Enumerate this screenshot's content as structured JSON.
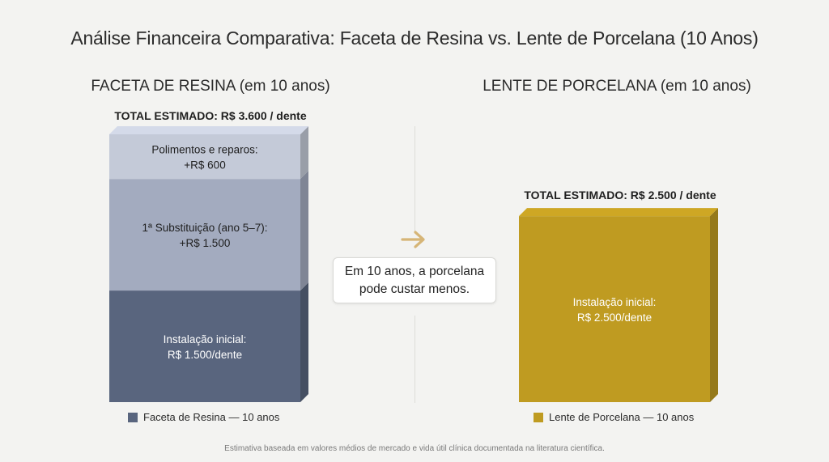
{
  "title": "Análise Financeira Comparativa: Faceta de Resina vs. Lente de Porcelana (10 Anos)",
  "colors": {
    "resin_base": "#59657e",
    "resin_mid": "#a3abbf",
    "resin_top": "#c4cad8",
    "porcelain": "#bf9b21"
  },
  "chart_data": [
    {
      "type": "bar",
      "title": "FACETA DE RESINA (em 10 anos)",
      "total_label": "TOTAL ESTIMADO: R$ 3.600 / dente",
      "total": 3600,
      "stack": [
        {
          "name": "Instalação inicial",
          "value": 1500,
          "label_line1": "Instalação inicial:",
          "label_line2": "R$ 1.500/dente"
        },
        {
          "name": "1ª Substituição (ano 5–7)",
          "value": 1500,
          "label_line1": "1ª Substituição (ano 5–7):",
          "label_line2": "+R$ 1.500"
        },
        {
          "name": "Polimentos e reparos",
          "value": 600,
          "label_line1": "Polimentos e reparos:",
          "label_line2": "+R$ 600"
        }
      ],
      "legend": "Faceta de Resina — 10 anos"
    },
    {
      "type": "bar",
      "title": "LENTE DE PORCELANA (em 10 anos)",
      "total_label": "TOTAL ESTIMADO: R$ 2.500 / dente",
      "total": 2500,
      "stack": [
        {
          "name": "Instalação inicial",
          "value": 2500,
          "label_line1": "Instalação inicial:",
          "label_line2": "R$ 2.500/dente"
        }
      ],
      "legend": "Lente de Porcelana — 10 anos"
    }
  ],
  "callout": {
    "line1": "Em 10 anos, a porcelana",
    "line2": "pode custar menos."
  },
  "footnote": "Estimativa baseada em valores médios de mercado e vida útil clínica documentada na literatura científica."
}
